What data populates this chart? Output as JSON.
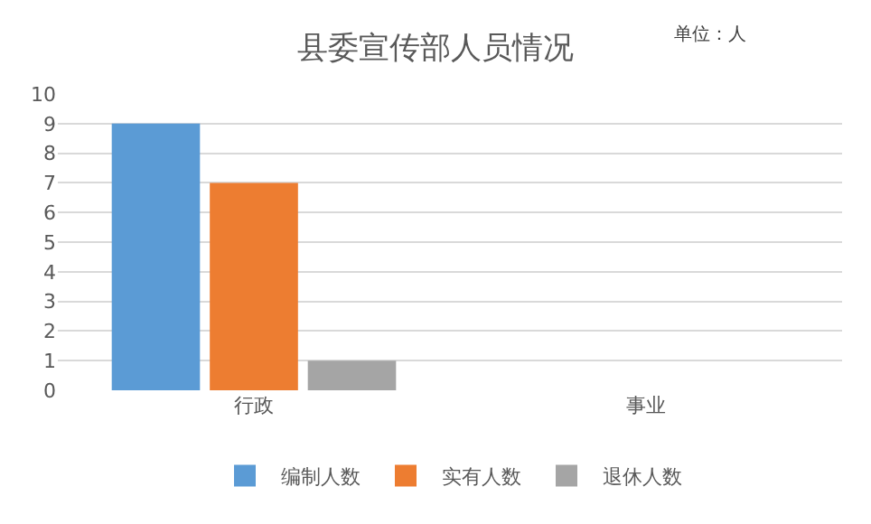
{
  "chart_data": {
    "type": "bar",
    "title": "县委宣传部人员情况",
    "annotations": [
      "单位：人"
    ],
    "categories": [
      "行政",
      "事业"
    ],
    "series": [
      {
        "name": "编制人数",
        "color": "#5b9bd5",
        "values": [
          9,
          0
        ]
      },
      {
        "name": "实有人数",
        "color": "#ed7d31",
        "values": [
          7,
          0
        ]
      },
      {
        "name": "退休人数",
        "color": "#a5a5a5",
        "values": [
          1,
          0
        ]
      }
    ],
    "ylim": [
      0,
      10
    ],
    "yticks": [
      0,
      1,
      2,
      3,
      4,
      5,
      6,
      7,
      8,
      9,
      10
    ],
    "grid": "y",
    "legend": "bottom"
  }
}
